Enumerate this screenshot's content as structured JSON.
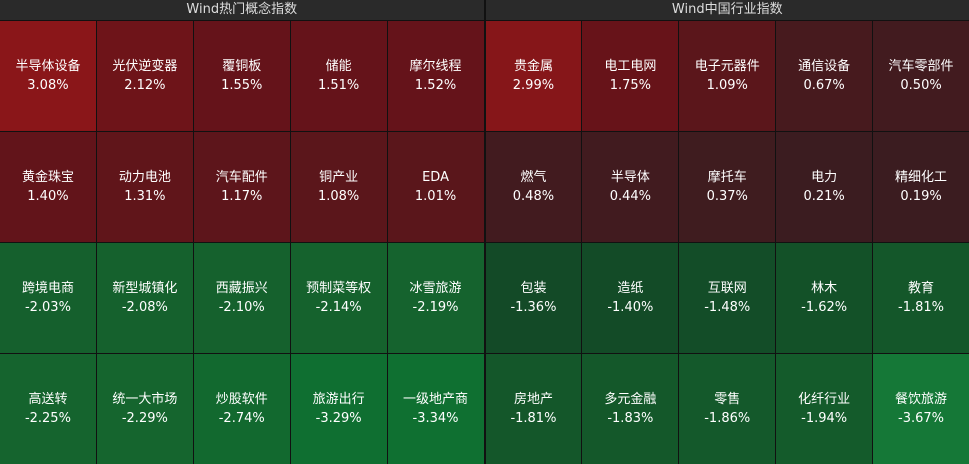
{
  "panels": [
    {
      "title": "Wind热门概念指数",
      "tiles": [
        {
          "name": "半导体设备",
          "change": "3.08%",
          "color": "#8a1619"
        },
        {
          "name": "光伏逆变器",
          "change": "2.12%",
          "color": "#6e1419"
        },
        {
          "name": "覆铜板",
          "change": "1.55%",
          "color": "#65131a"
        },
        {
          "name": "储能",
          "change": "1.51%",
          "color": "#65131a"
        },
        {
          "name": "摩尔线程",
          "change": "1.52%",
          "color": "#65131a"
        },
        {
          "name": "黄金珠宝",
          "change": "1.40%",
          "color": "#62141a"
        },
        {
          "name": "动力电池",
          "change": "1.31%",
          "color": "#60151a"
        },
        {
          "name": "汽车配件",
          "change": "1.17%",
          "color": "#5d151b"
        },
        {
          "name": "铜产业",
          "change": "1.08%",
          "color": "#5b161b"
        },
        {
          "name": "EDA",
          "change": "1.01%",
          "color": "#5a161b"
        },
        {
          "name": "跨境电商",
          "change": "-2.03%",
          "color": "#15602d"
        },
        {
          "name": "新型城镇化",
          "change": "-2.08%",
          "color": "#15612d"
        },
        {
          "name": "西藏振兴",
          "change": "-2.10%",
          "color": "#15612d"
        },
        {
          "name": "预制菜等权",
          "change": "-2.14%",
          "color": "#15622d"
        },
        {
          "name": "冰雪旅游",
          "change": "-2.19%",
          "color": "#15632e"
        },
        {
          "name": "高送转",
          "change": "-2.25%",
          "color": "#15642e"
        },
        {
          "name": "统一大市场",
          "change": "-2.29%",
          "color": "#15652e"
        },
        {
          "name": "炒股软件",
          "change": "-2.74%",
          "color": "#12692f"
        },
        {
          "name": "旅游出行",
          "change": "-3.29%",
          "color": "#0f6f31"
        },
        {
          "name": "一级地产商",
          "change": "-3.34%",
          "color": "#0f7031"
        }
      ]
    },
    {
      "title": "Wind中国行业指数",
      "tiles": [
        {
          "name": "贵金属",
          "change": "2.99%",
          "color": "#861619"
        },
        {
          "name": "电工电网",
          "change": "1.75%",
          "color": "#671319"
        },
        {
          "name": "电子元器件",
          "change": "1.09%",
          "color": "#5b161b"
        },
        {
          "name": "通信设备",
          "change": "0.67%",
          "color": "#471a1e"
        },
        {
          "name": "汽车零部件",
          "change": "0.50%",
          "color": "#421b1f"
        },
        {
          "name": "燃气",
          "change": "0.48%",
          "color": "#421b1f"
        },
        {
          "name": "半导体",
          "change": "0.44%",
          "color": "#411b1f"
        },
        {
          "name": "摩托车",
          "change": "0.37%",
          "color": "#3f1c1f"
        },
        {
          "name": "电力",
          "change": "0.21%",
          "color": "#3b1c20"
        },
        {
          "name": "精细化工",
          "change": "0.19%",
          "color": "#3b1c20"
        },
        {
          "name": "包装",
          "change": "-1.36%",
          "color": "#134a27"
        },
        {
          "name": "造纸",
          "change": "-1.40%",
          "color": "#134b27"
        },
        {
          "name": "互联网",
          "change": "-1.48%",
          "color": "#134d28"
        },
        {
          "name": "林木",
          "change": "-1.62%",
          "color": "#135128"
        },
        {
          "name": "教育",
          "change": "-1.81%",
          "color": "#14572a"
        },
        {
          "name": "房地产",
          "change": "-1.81%",
          "color": "#14572a"
        },
        {
          "name": "多元金融",
          "change": "-1.83%",
          "color": "#14582a"
        },
        {
          "name": "零售",
          "change": "-1.86%",
          "color": "#14592b"
        },
        {
          "name": "化纤行业",
          "change": "-1.94%",
          "color": "#145b2b"
        },
        {
          "name": "餐饮旅游",
          "change": "-3.67%",
          "color": "#157837"
        }
      ]
    }
  ]
}
